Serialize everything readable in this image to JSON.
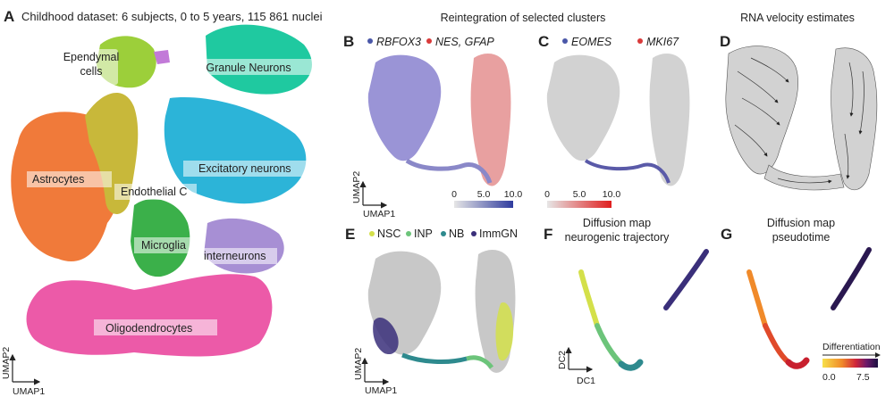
{
  "panel_a": {
    "letter": "A",
    "title": "Childhood dataset: 6 subjects, 0 to 5 years, 115 861 nuclei",
    "clusters": [
      {
        "label": "Ependymal cells",
        "lines": [
          "Ependymal",
          "cells"
        ],
        "color": "#9ccf3a"
      },
      {
        "label": "Granule Neurons",
        "color": "#1fc9a0"
      },
      {
        "label": "Astrocytes",
        "color": "#f07a3a"
      },
      {
        "label": "Excitatory neurons",
        "color": "#2cb4d8"
      },
      {
        "label": "Endothelial C",
        "color": "#c8b83a"
      },
      {
        "label": "Microglia",
        "color": "#3bb04a"
      },
      {
        "label": "interneurons",
        "color": "#a78fd4"
      },
      {
        "label": "Oligodendrocytes",
        "color": "#ec5aa8"
      }
    ],
    "xaxis": "UMAP1",
    "yaxis": "UMAP2"
  },
  "reintegration_title": "Reintegration of selected clusters",
  "panel_b": {
    "letter": "B",
    "legend": [
      {
        "label": "RBFOX3",
        "color": "#4a57a8"
      },
      {
        "label": "NES, GFAP",
        "color": "#d93a3a"
      }
    ],
    "colorbar_ticks": [
      "0",
      "5.0",
      "10.0"
    ],
    "xaxis": "UMAP1",
    "yaxis": "UMAP2"
  },
  "panel_c": {
    "letter": "C",
    "legend": [
      {
        "label": "EOMES",
        "color": "#4a57a8"
      },
      {
        "label": "MKI67",
        "color": "#d93a3a"
      }
    ],
    "colorbar_ticks": [
      "0",
      "5.0",
      "10.0"
    ]
  },
  "panel_d": {
    "letter": "D",
    "title": "RNA velocity estimates"
  },
  "panel_e": {
    "letter": "E",
    "legend": [
      {
        "label": "NSC",
        "color": "#d4e04a"
      },
      {
        "label": "INP",
        "color": "#6cc47a"
      },
      {
        "label": "NB",
        "color": "#2e8a8e"
      },
      {
        "label": "ImmGN",
        "color": "#3a2f7a"
      }
    ],
    "xaxis": "UMAP1",
    "yaxis": "UMAP2"
  },
  "panel_f": {
    "letter": "F",
    "title_lines": [
      "Diffusion map",
      "neurogenic trajectory"
    ],
    "xaxis": "DC1",
    "yaxis": "DC2"
  },
  "panel_g": {
    "letter": "G",
    "title_lines": [
      "Diffusion map",
      "pseudotime"
    ],
    "colorbar_label": "Differentiation",
    "colorbar_ticks": [
      "0.0",
      "7.5"
    ]
  }
}
